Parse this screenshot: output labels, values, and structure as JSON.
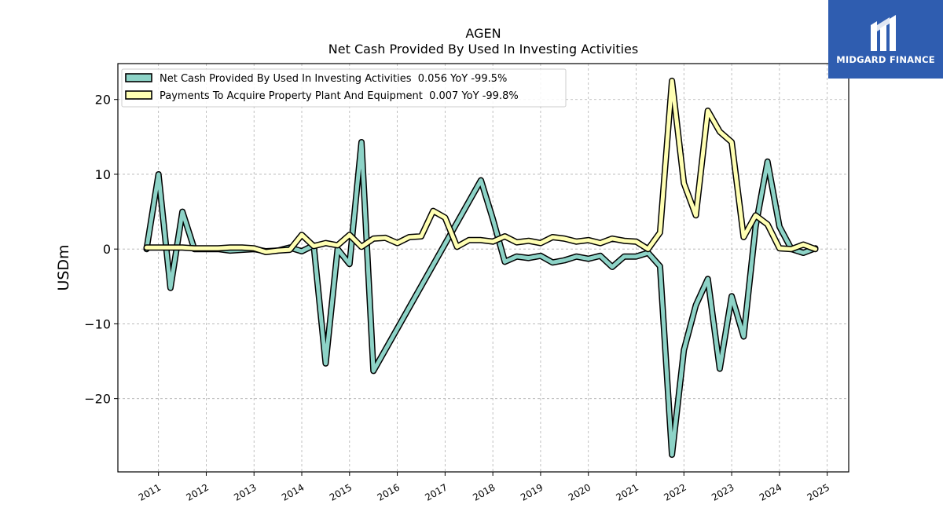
{
  "chart_data": {
    "type": "line",
    "title": "AGEN",
    "subtitle": "Net Cash Provided By Used In Investing Activities",
    "ylabel": "USDm",
    "xlabel": "",
    "xlim": [
      2010.15,
      2025.45
    ],
    "ylim": [
      -29.8,
      24.8
    ],
    "x_ticks": [
      2011,
      2012,
      2013,
      2014,
      2015,
      2016,
      2017,
      2018,
      2019,
      2020,
      2021,
      2022,
      2023,
      2024,
      2025
    ],
    "x_tick_labels": [
      "2011",
      "2012",
      "2013",
      "2014",
      "2015",
      "2016",
      "2017",
      "2018",
      "2019",
      "2020",
      "2021",
      "2022",
      "2023",
      "2024",
      "2025"
    ],
    "y_ticks": [
      20,
      10,
      0,
      -10,
      -20
    ],
    "y_tick_labels": [
      "20",
      "10",
      "0",
      "−10",
      "−20"
    ],
    "grid": true,
    "legend_position": "top-left",
    "series": [
      {
        "name": "Net Cash Provided By Used In Investing Activities  0.056 YoY -99.5%",
        "color": "#8dd3c7",
        "x": [
          2010.75,
          2011.0,
          2011.25,
          2011.5,
          2011.75,
          2012.0,
          2012.25,
          2012.5,
          2012.75,
          2013.0,
          2013.25,
          2013.5,
          2013.75,
          2014.0,
          2014.25,
          2014.5,
          2014.75,
          2015.0,
          2015.25,
          2015.5,
          2017.75,
          2018.0,
          2018.25,
          2018.5,
          2018.75,
          2019.0,
          2019.25,
          2019.5,
          2019.75,
          2020.0,
          2020.25,
          2020.5,
          2020.75,
          2021.0,
          2021.25,
          2021.5,
          2021.75,
          2022.0,
          2022.25,
          2022.5,
          2022.75,
          2023.0,
          2023.25,
          2023.5,
          2023.75,
          2024.0,
          2024.25,
          2024.5,
          2024.75
        ],
        "values": [
          0.0,
          10.0,
          -5.2,
          5.0,
          0.0,
          0.0,
          0.0,
          -0.2,
          -0.1,
          0.0,
          -0.3,
          -0.2,
          0.2,
          -0.3,
          0.5,
          -15.3,
          0.0,
          -2.0,
          14.3,
          -16.3,
          9.2,
          4.0,
          -1.7,
          -1.0,
          -1.2,
          -0.9,
          -1.8,
          -1.5,
          -1.0,
          -1.3,
          -0.9,
          -2.4,
          -1.0,
          -1.0,
          -0.5,
          -2.3,
          -27.5,
          -13.5,
          -7.5,
          -4.0,
          -16.0,
          -6.3,
          -11.7,
          3.0,
          11.7,
          3.0,
          0.0,
          -0.5,
          0.1
        ]
      },
      {
        "name": "Payments To Acquire Property Plant And Equipment  0.007 YoY -99.8%",
        "color": "#ffffb3",
        "x": [
          2010.75,
          2011.0,
          2011.25,
          2011.5,
          2011.75,
          2012.0,
          2012.25,
          2012.5,
          2012.75,
          2013.0,
          2013.25,
          2013.5,
          2013.75,
          2014.0,
          2014.25,
          2014.5,
          2014.75,
          2015.0,
          2015.25,
          2015.5,
          2015.75,
          2016.0,
          2016.25,
          2016.5,
          2016.75,
          2017.0,
          2017.25,
          2017.5,
          2017.75,
          2018.0,
          2018.25,
          2018.5,
          2018.75,
          2019.0,
          2019.25,
          2019.5,
          2019.75,
          2020.0,
          2020.25,
          2020.5,
          2020.75,
          2021.0,
          2021.25,
          2021.5,
          2021.75,
          2022.0,
          2022.25,
          2022.5,
          2022.75,
          2023.0,
          2023.25,
          2023.5,
          2023.75,
          2024.0,
          2024.25,
          2024.5,
          2024.75
        ],
        "values": [
          0.2,
          0.2,
          0.2,
          0.2,
          0.1,
          0.1,
          0.1,
          0.2,
          0.2,
          0.1,
          -0.4,
          -0.2,
          -0.1,
          1.9,
          0.4,
          0.8,
          0.5,
          1.9,
          0.3,
          1.4,
          1.5,
          0.8,
          1.6,
          1.7,
          5.1,
          4.2,
          0.3,
          1.2,
          1.2,
          1.0,
          1.7,
          0.9,
          1.1,
          0.8,
          1.6,
          1.4,
          1.0,
          1.2,
          0.8,
          1.4,
          1.1,
          1.0,
          0.0,
          2.2,
          22.5,
          8.8,
          4.5,
          18.5,
          15.7,
          14.3,
          1.6,
          4.5,
          3.3,
          0.1,
          0.0,
          0.6,
          0.0
        ]
      }
    ]
  },
  "logo": {
    "brand": "MIDGARD FINANCE",
    "icon": "midgard-m-logo-icon"
  }
}
